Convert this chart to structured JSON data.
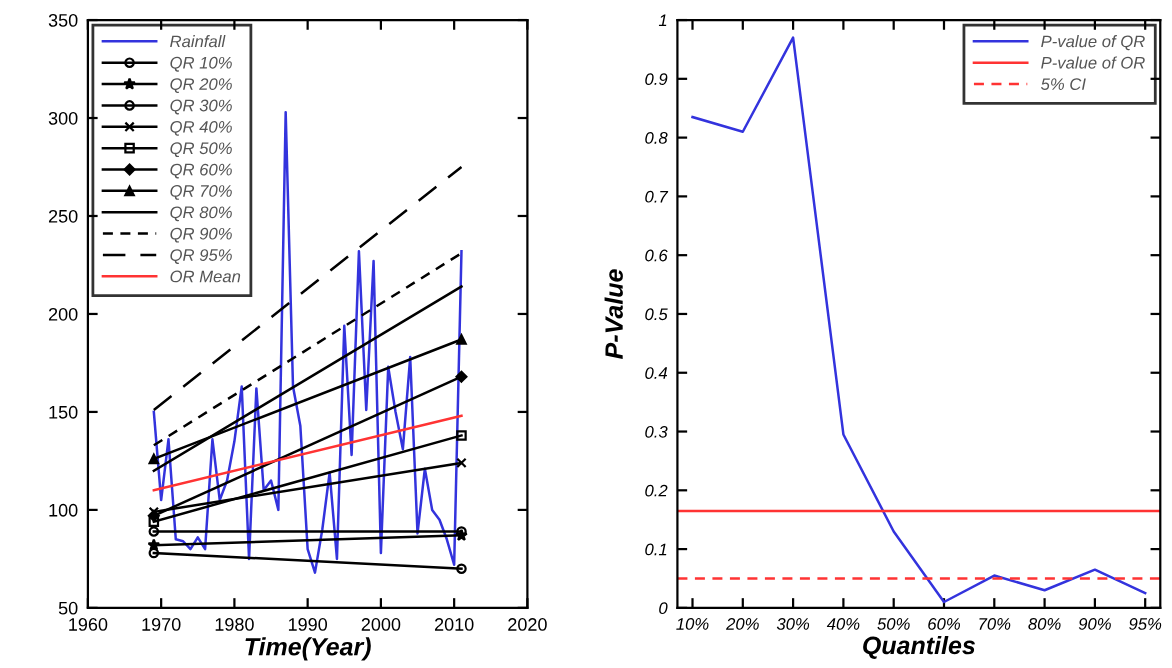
{
  "chart_data": [
    {
      "type": "line",
      "xlabel": "Time(Year)",
      "xlim": [
        1960,
        2020
      ],
      "xticks": [
        1960,
        1970,
        1980,
        1990,
        2000,
        2010,
        2020
      ],
      "ylim": [
        50,
        350
      ],
      "yticks": [
        50,
        100,
        150,
        200,
        250,
        300,
        350
      ],
      "legend": "top left",
      "grid": false,
      "series": [
        {
          "name": "Rainfall",
          "color": "#3333dd",
          "marker": "none",
          "line_style": "solid",
          "x": [
            1969,
            1970,
            1971,
            1972,
            1973,
            1974,
            1975,
            1976,
            1977,
            1978,
            1979,
            1980,
            1981,
            1982,
            1983,
            1984,
            1985,
            1986,
            1987,
            1988,
            1989,
            1990,
            1991,
            1992,
            1993,
            1994,
            1995,
            1996,
            1997,
            1998,
            1999,
            2000,
            2001,
            2002,
            2003,
            2004,
            2005,
            2006,
            2007,
            2008,
            2009,
            2010,
            2011
          ],
          "values": [
            150,
            105,
            136,
            85,
            84,
            80,
            86,
            80,
            136,
            105,
            115,
            135,
            163,
            75,
            162,
            110,
            115,
            100,
            303,
            163,
            143,
            80,
            68,
            90,
            119,
            75,
            194,
            128,
            232,
            151,
            227,
            78,
            173,
            150,
            131,
            178,
            88,
            121,
            100,
            95,
            85,
            72,
            232
          ]
        },
        {
          "name": "QR 10%",
          "color": "#000000",
          "marker": "circle",
          "line_style": "solid",
          "x": [
            1969,
            2011
          ],
          "values": [
            78,
            70
          ]
        },
        {
          "name": "QR 20%",
          "color": "#000000",
          "marker": "star",
          "line_style": "solid",
          "x": [
            1969,
            2011
          ],
          "values": [
            82,
            87
          ]
        },
        {
          "name": "QR 30%",
          "color": "#000000",
          "marker": "circle",
          "line_style": "solid",
          "x": [
            1969,
            2011
          ],
          "values": [
            89,
            89
          ]
        },
        {
          "name": "QR 40%",
          "color": "#000000",
          "marker": "cross",
          "line_style": "solid",
          "x": [
            1969,
            2011
          ],
          "values": [
            99,
            124
          ]
        },
        {
          "name": "QR 50%",
          "color": "#000000",
          "marker": "square",
          "line_style": "solid",
          "x": [
            1969,
            2011
          ],
          "values": [
            94,
            138
          ]
        },
        {
          "name": "QR 60%",
          "color": "#000000",
          "marker": "diamond",
          "line_style": "solid",
          "x": [
            1969,
            2011
          ],
          "values": [
            97,
            168
          ]
        },
        {
          "name": "QR 70%",
          "color": "#000000",
          "marker": "triangle",
          "line_style": "solid",
          "x": [
            1969,
            2011
          ],
          "values": [
            126,
            187
          ]
        },
        {
          "name": "QR 80%",
          "color": "#000000",
          "marker": "none",
          "line_style": "solid",
          "x": [
            1969,
            2011
          ],
          "values": [
            120,
            214
          ]
        },
        {
          "name": "QR 90%",
          "color": "#000000",
          "marker": "none",
          "line_style": "dashed",
          "x": [
            1969,
            2011
          ],
          "values": [
            133,
            231
          ]
        },
        {
          "name": "QR 95%",
          "color": "#000000",
          "marker": "none",
          "line_style": "longdash",
          "x": [
            1969,
            2011
          ],
          "values": [
            151,
            275
          ]
        },
        {
          "name": "OR Mean",
          "color": "#ff3333",
          "marker": "none",
          "line_style": "solid",
          "x": [
            1969,
            2011
          ],
          "values": [
            110,
            148
          ]
        }
      ]
    },
    {
      "type": "line",
      "xlabel": "Quantiles",
      "ylabel": "P-Value",
      "categories": [
        "10%",
        "20%",
        "30%",
        "40%",
        "50%",
        "60%",
        "70%",
        "80%",
        "90%",
        "95%"
      ],
      "ylim": [
        0,
        1
      ],
      "yticks": [
        0,
        0.1,
        0.2,
        0.3,
        0.4,
        0.5,
        0.6,
        0.7,
        0.8,
        0.9,
        1
      ],
      "legend": "top right",
      "grid": false,
      "series": [
        {
          "name": "P-value of QR",
          "color": "#3333dd",
          "marker": "none",
          "line_style": "solid",
          "values": [
            0.835,
            0.81,
            0.97,
            0.295,
            0.13,
            0.01,
            0.055,
            0.03,
            0.065,
            0.025
          ]
        }
      ],
      "ref_lines": [
        {
          "axis": "y",
          "value": 0.165,
          "label": "P-value of OR",
          "color": "#ff3333",
          "line_style": "solid"
        },
        {
          "axis": "y",
          "value": 0.05,
          "label": "5% CI",
          "color": "#ff3333",
          "line_style": "dashed"
        }
      ]
    }
  ]
}
